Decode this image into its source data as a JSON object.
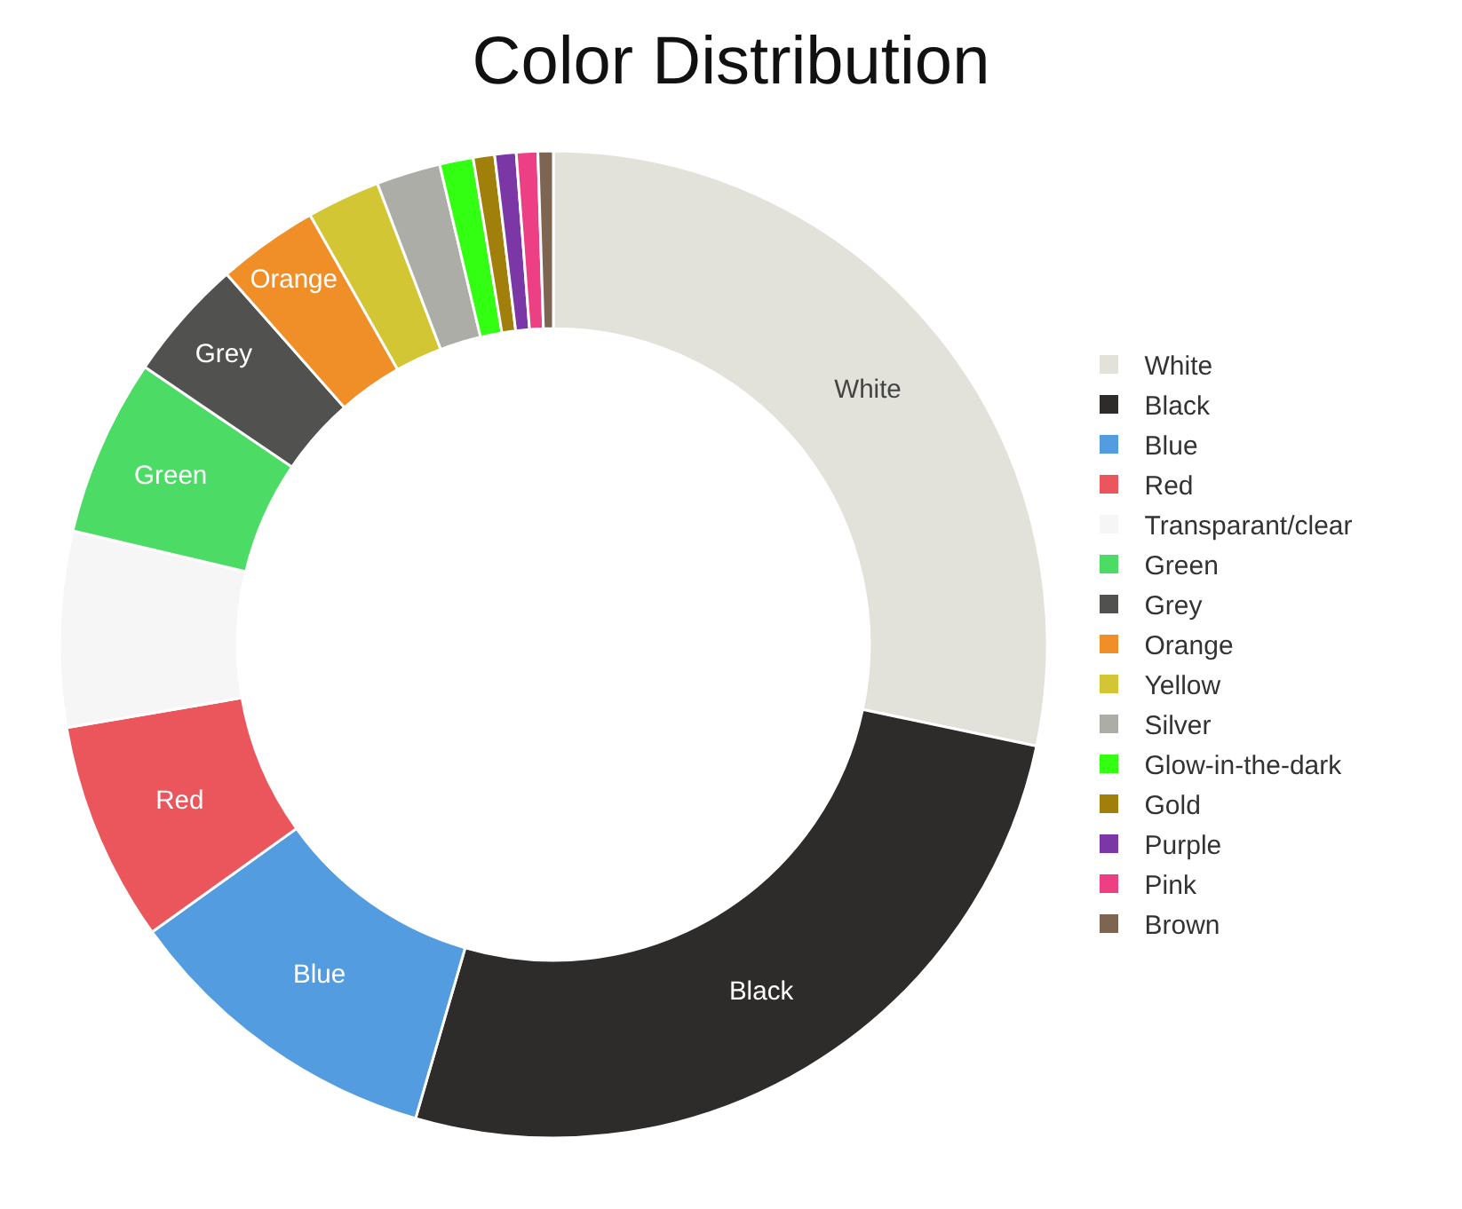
{
  "chart_data": {
    "type": "donut",
    "title": "Color Distribution",
    "categories": [
      "White",
      "Black",
      "Blue",
      "Red",
      "Transparant/clear",
      "Green",
      "Grey",
      "Orange",
      "Yellow",
      "Silver",
      "Glow-in-the-dark",
      "Gold",
      "Purple",
      "Pink",
      "Brown"
    ],
    "values": [
      28.3,
      26.2,
      10.6,
      7.2,
      6.4,
      5.8,
      4.0,
      3.3,
      2.4,
      2.1,
      1.1,
      0.7,
      0.7,
      0.7,
      0.5
    ],
    "colors": [
      "#e3e2da",
      "#2d2c2a",
      "#539ce0",
      "#ea565b",
      "#f6f6f6",
      "#4cdc65",
      "#515150",
      "#f08e28",
      "#d2c634",
      "#acada7",
      "#33ff12",
      "#a07f0b",
      "#7b37a6",
      "#ec3f84",
      "#7e6552"
    ],
    "legend": "right"
  }
}
